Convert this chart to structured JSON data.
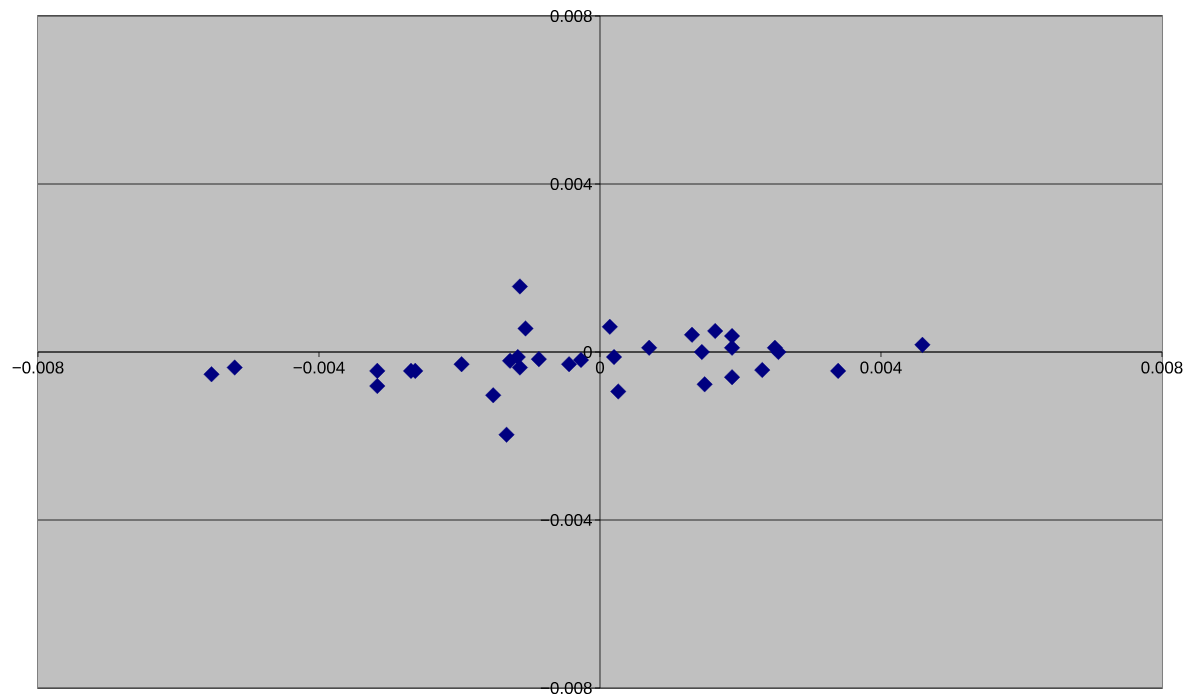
{
  "chart_data": {
    "type": "scatter",
    "x": [
      -0.00553,
      -0.0052,
      -0.00317,
      -0.00317,
      -0.00269,
      -0.00263,
      -0.00197,
      -0.00152,
      -0.00133,
      -0.00114,
      -0.00106,
      -0.00128,
      -0.00117,
      -0.00114,
      -0.00087,
      -0.00044,
      -0.00027,
      0.00014,
      0.0002,
      0.00026,
      0.0007,
      0.00131,
      0.00145,
      0.00149,
      0.00164,
      0.00188,
      0.00188,
      0.00188,
      0.00231,
      0.00249,
      0.00254,
      0.00339,
      0.00459
    ],
    "values": [
      -0.00053,
      -0.00037,
      -0.00045,
      -0.00081,
      -0.00045,
      -0.00045,
      -0.00029,
      -0.00103,
      -0.00197,
      0.00156,
      0.00056,
      -0.00021,
      -0.00012,
      -0.00037,
      -0.00017,
      -0.00029,
      -0.00019,
      0.0006,
      -0.00012,
      -0.00094,
      0.0001,
      0.00041,
      0,
      -0.00077,
      0.0005,
      0.00038,
      0.0001,
      -0.0006,
      -0.00043,
      0.0001,
      0,
      -0.00045,
      0.00017
    ],
    "color": "#000080",
    "marker": "diamond",
    "grid": "y",
    "xlim": [
      -0.008,
      0.008
    ],
    "ylim": [
      -0.008,
      0.008
    ],
    "xticks": [
      {
        "value": -0.008,
        "label": "−0.008"
      },
      {
        "value": -0.004,
        "label": "−0.004"
      },
      0,
      0.004,
      0.008
    ],
    "yticks": [
      {
        "value": -0.008,
        "label": "−0.008"
      },
      {
        "value": -0.004,
        "label": "−0.004"
      },
      0,
      0.004,
      0.008
    ]
  }
}
